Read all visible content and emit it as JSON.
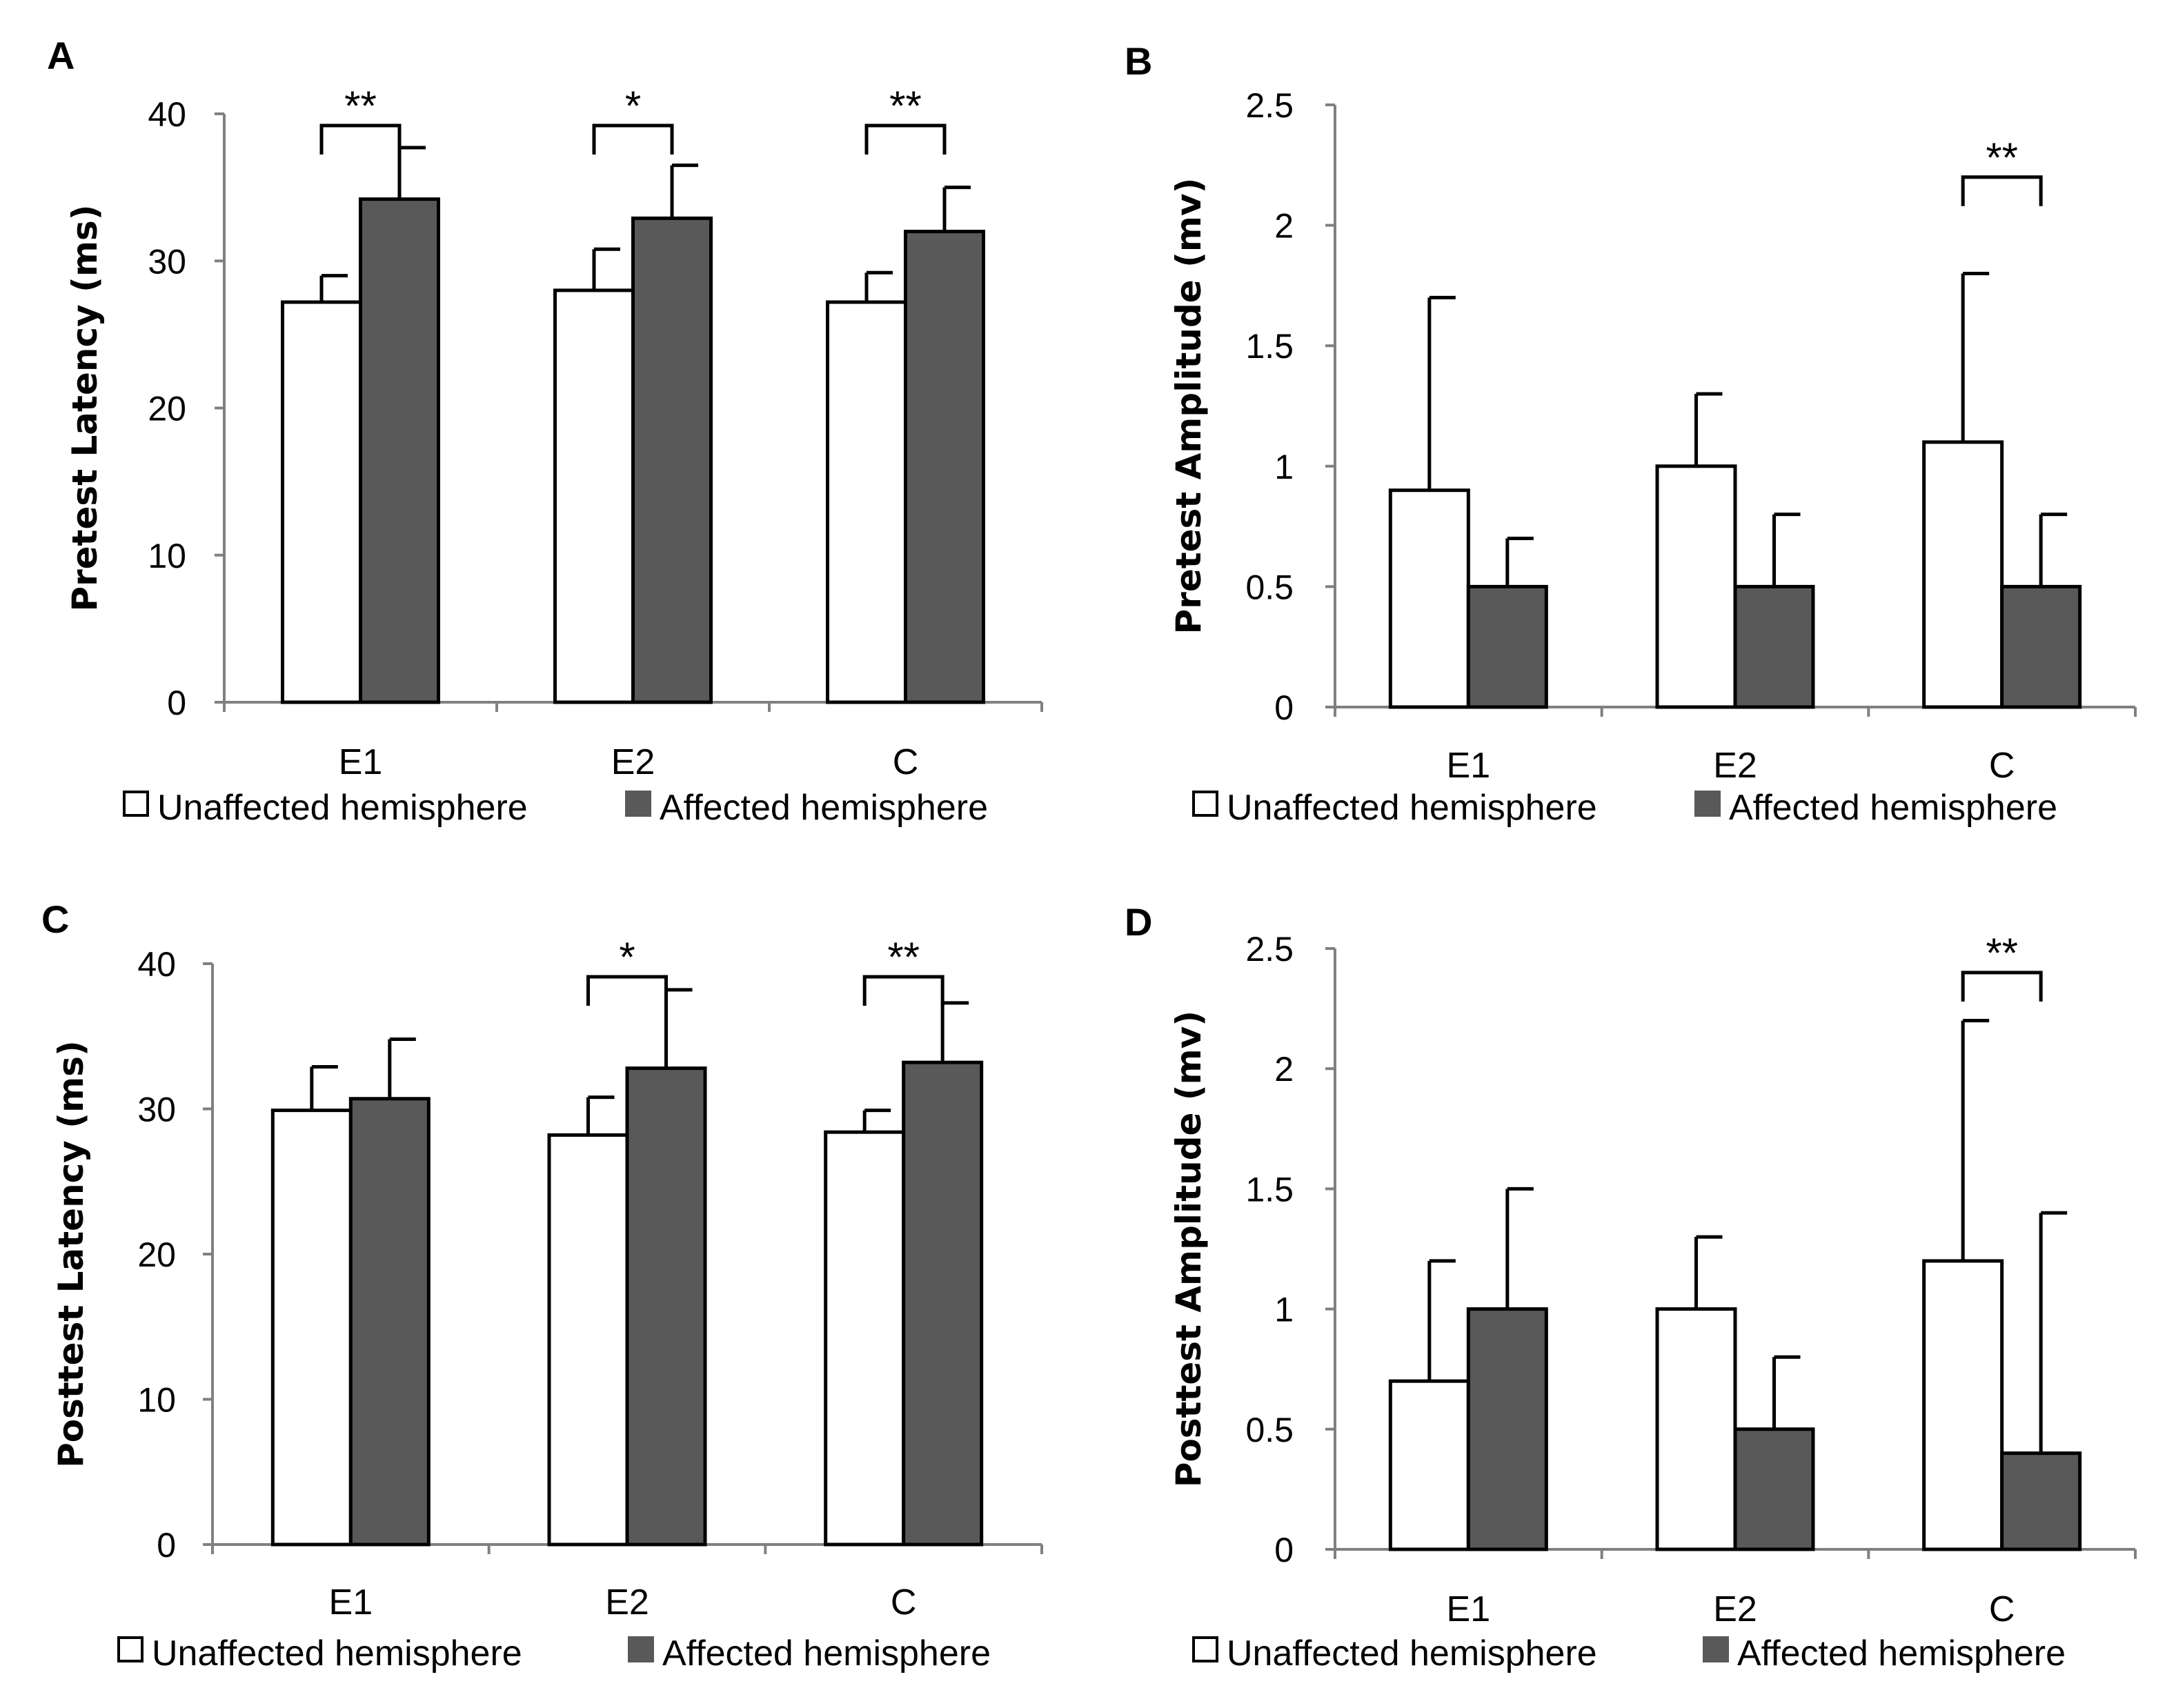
{
  "figure": {
    "colors": {
      "unaffected": "#ffffff",
      "affected": "#595959",
      "axis": "#808080",
      "ink": "#000000"
    },
    "legend": {
      "unaffected_label": "Unaffected hemisphere",
      "affected_label": "Affected hemisphere"
    }
  },
  "chart_data": [
    {
      "panel": "A",
      "type": "bar",
      "ylabel": "Pretest Latency (ms)",
      "categories": [
        "E1",
        "E2",
        "C"
      ],
      "ylim": [
        0,
        40
      ],
      "yticks": [
        "0",
        "10",
        "20",
        "30",
        "40"
      ],
      "series": [
        {
          "name": "Unaffected hemisphere",
          "values": [
            27.2,
            28.0,
            27.2
          ],
          "errors": [
            1.8,
            2.8,
            2.0
          ]
        },
        {
          "name": "Affected hemisphere",
          "values": [
            34.2,
            32.9,
            32.0
          ],
          "errors": [
            3.5,
            3.6,
            3.0
          ]
        }
      ],
      "significance": [
        {
          "category": "E1",
          "label": "**",
          "level": 39.2
        },
        {
          "category": "E2",
          "label": "*",
          "level": 39.2
        },
        {
          "category": "C",
          "label": "**",
          "level": 39.2
        }
      ]
    },
    {
      "panel": "B",
      "type": "bar",
      "ylabel": "Pretest Amplitude (mv)",
      "categories": [
        "E1",
        "E2",
        "C"
      ],
      "ylim": [
        0,
        2.5
      ],
      "yticks": [
        "0",
        "0.5",
        "1",
        "1.5",
        "2",
        "2.5"
      ],
      "series": [
        {
          "name": "Unaffected hemisphere",
          "values": [
            0.9,
            1.0,
            1.1
          ],
          "errors": [
            0.8,
            0.3,
            0.7
          ]
        },
        {
          "name": "Affected hemisphere",
          "values": [
            0.5,
            0.5,
            0.5
          ],
          "errors": [
            0.2,
            0.3,
            0.3
          ]
        }
      ],
      "significance": [
        {
          "category": "C",
          "label": "**",
          "level": 2.2
        }
      ]
    },
    {
      "panel": "C",
      "type": "bar",
      "ylabel": "Posttest Latency (ms)",
      "categories": [
        "E1",
        "E2",
        "C"
      ],
      "ylim": [
        0,
        40
      ],
      "yticks": [
        "0",
        "10",
        "20",
        "30",
        "40"
      ],
      "series": [
        {
          "name": "Unaffected hemisphere",
          "values": [
            29.9,
            28.2,
            28.4
          ],
          "errors": [
            3.0,
            2.6,
            1.5
          ]
        },
        {
          "name": "Affected hemisphere",
          "values": [
            30.7,
            32.8,
            33.2
          ],
          "errors": [
            4.1,
            5.4,
            4.1
          ]
        }
      ],
      "significance": [
        {
          "category": "E2",
          "label": "*",
          "level": 39.1
        },
        {
          "category": "C",
          "label": "**",
          "level": 39.1
        }
      ]
    },
    {
      "panel": "D",
      "type": "bar",
      "ylabel": "Posttest Amplitude (mv)",
      "categories": [
        "E1",
        "E2",
        "C"
      ],
      "ylim": [
        0,
        2.5
      ],
      "yticks": [
        "0",
        "0.5",
        "1",
        "1.5",
        "2",
        "2.5"
      ],
      "series": [
        {
          "name": "Unaffected hemisphere",
          "values": [
            0.7,
            1.0,
            1.2
          ],
          "errors": [
            0.5,
            0.3,
            1.0
          ]
        },
        {
          "name": "Affected hemisphere",
          "values": [
            1.0,
            0.5,
            0.4
          ],
          "errors": [
            0.5,
            0.3,
            1.0
          ]
        }
      ],
      "significance": [
        {
          "category": "C",
          "label": "**",
          "level": 2.4
        }
      ]
    }
  ]
}
